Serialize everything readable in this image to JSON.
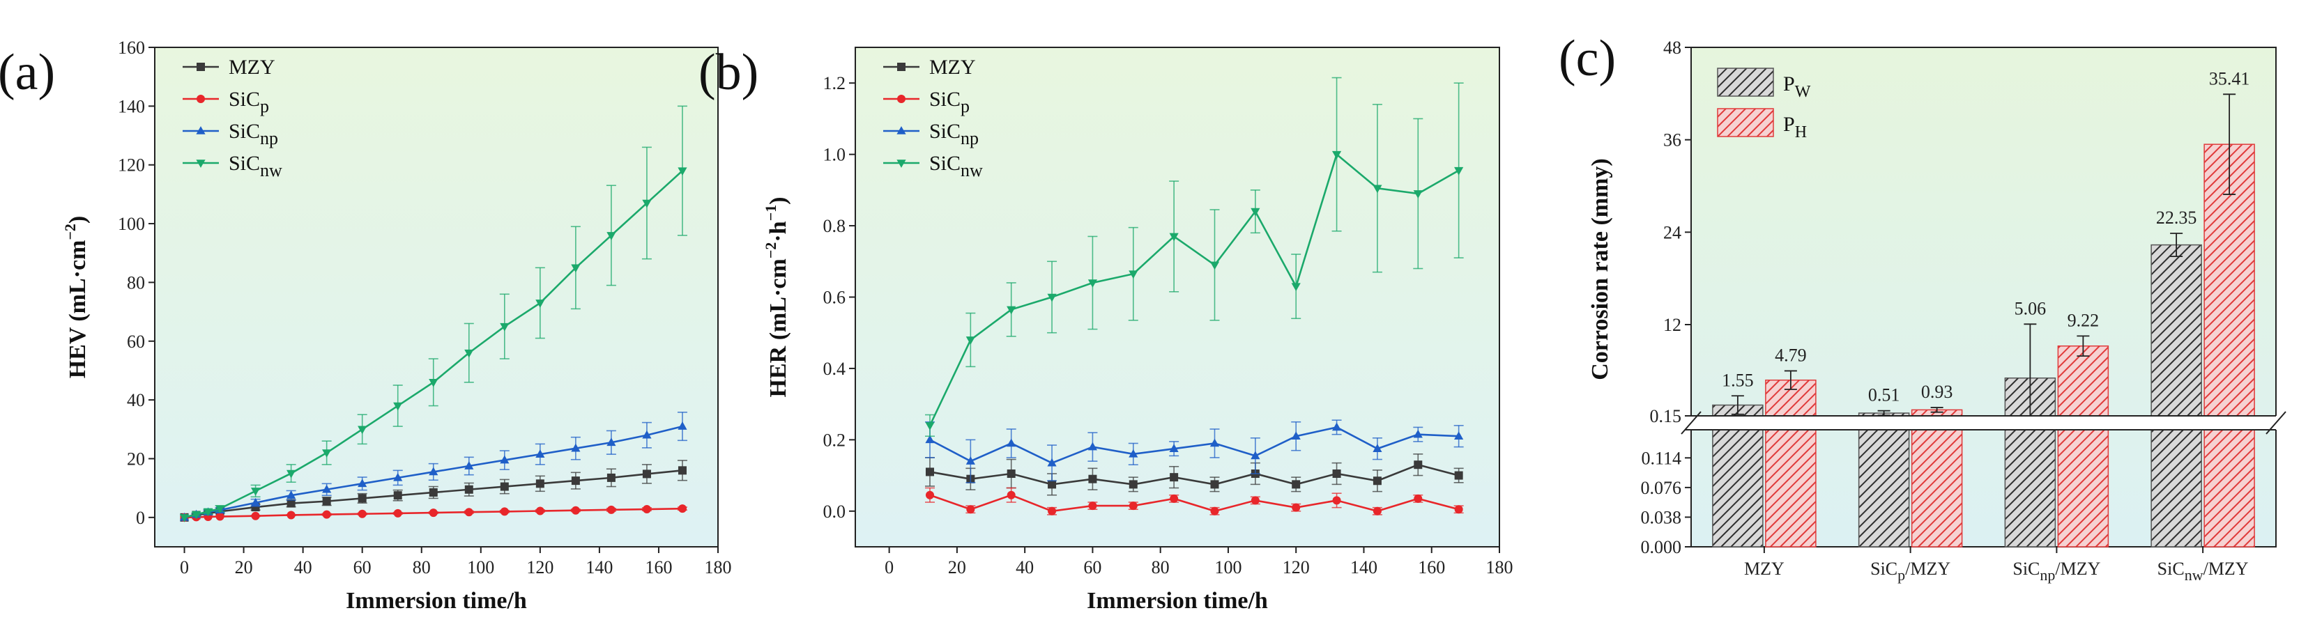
{
  "chart_data": [
    {
      "type": "line",
      "panel_label": "(a)",
      "xlabel": "Immersion time/h",
      "ylabel": "HEV (mL·cm⁻²)",
      "ylabel_parts": {
        "main": "HEV (mL·cm",
        "sup": "−2",
        "close": ")"
      },
      "xlim": [
        -10,
        180
      ],
      "ylim": [
        -10,
        160
      ],
      "xticks": [
        0,
        20,
        40,
        60,
        80,
        100,
        120,
        140,
        160,
        180
      ],
      "yticks": [
        0,
        20,
        40,
        60,
        80,
        100,
        120,
        140,
        160
      ],
      "gradient": [
        "#e8f6df",
        "#def2f4"
      ],
      "series": [
        {
          "name": "MZY",
          "name_main": "MZY",
          "name_sub": "",
          "color": "#3a3a3a",
          "marker": "square",
          "x": [
            0,
            4,
            8,
            12,
            24,
            36,
            48,
            60,
            72,
            84,
            96,
            108,
            120,
            132,
            144,
            156,
            168
          ],
          "y": [
            0,
            0.8,
            1.4,
            2,
            3.5,
            4.8,
            5.5,
            6.5,
            7.5,
            8.5,
            9.5,
            10.5,
            11.5,
            12.5,
            13.5,
            14.8,
            16
          ],
          "err": [
            0,
            0.3,
            0.5,
            0.6,
            1,
            1.2,
            1.4,
            1.6,
            1.8,
            2,
            2.2,
            2.4,
            2.6,
            2.8,
            3,
            3.2,
            3.4
          ]
        },
        {
          "name": "SiCp",
          "name_main": "SiC",
          "name_sub": "p",
          "color": "#e8262a",
          "marker": "circle",
          "x": [
            0,
            4,
            8,
            12,
            24,
            36,
            48,
            60,
            72,
            84,
            96,
            108,
            120,
            132,
            144,
            156,
            168
          ],
          "y": [
            0,
            0.1,
            0.2,
            0.3,
            0.5,
            0.8,
            1,
            1.2,
            1.4,
            1.6,
            1.8,
            2,
            2.2,
            2.4,
            2.6,
            2.8,
            3
          ],
          "err": [
            0,
            0.1,
            0.1,
            0.1,
            0.2,
            0.2,
            0.3,
            0.3,
            0.3,
            0.3,
            0.4,
            0.4,
            0.4,
            0.4,
            0.5,
            0.5,
            0.5
          ]
        },
        {
          "name": "SiCnp",
          "name_main": "SiC",
          "name_sub": "np",
          "color": "#1f5fc8",
          "marker": "triangle-up",
          "x": [
            0,
            4,
            8,
            12,
            24,
            36,
            48,
            60,
            72,
            84,
            96,
            108,
            120,
            132,
            144,
            156,
            168
          ],
          "y": [
            0,
            1,
            1.8,
            2.5,
            5,
            7.5,
            9.5,
            11.5,
            13.5,
            15.5,
            17.5,
            19.5,
            21.5,
            23.5,
            25.5,
            28,
            31
          ],
          "err": [
            0,
            0.4,
            0.6,
            0.8,
            1.2,
            1.6,
            2,
            2.2,
            2.5,
            2.8,
            3,
            3.2,
            3.5,
            3.8,
            4,
            4.3,
            4.8
          ]
        },
        {
          "name": "SiCnw",
          "name_main": "SiC",
          "name_sub": "nw",
          "color": "#1ba96b",
          "marker": "triangle-down",
          "x": [
            0,
            4,
            8,
            12,
            24,
            36,
            48,
            60,
            72,
            84,
            96,
            108,
            120,
            132,
            144,
            156,
            168
          ],
          "y": [
            0,
            1,
            2,
            3,
            9,
            15,
            22,
            30,
            38,
            46,
            56,
            65,
            73,
            85,
            96,
            107,
            118
          ],
          "err": [
            0,
            0.5,
            0.8,
            1,
            2,
            3,
            4,
            5,
            7,
            8,
            10,
            11,
            12,
            14,
            17,
            19,
            22
          ]
        }
      ]
    },
    {
      "type": "line",
      "panel_label": "(b)",
      "xlabel": "Immersion time/h",
      "ylabel": "HER (mL·cm⁻²·h⁻¹)",
      "ylabel_parts": {
        "main": "HER (mL·cm",
        "sup": "−2",
        "mid": "·h",
        "sup2": "−1",
        "close": ")"
      },
      "xlim": [
        -10,
        180
      ],
      "ylim": [
        -0.1,
        1.3
      ],
      "xticks": [
        0,
        20,
        40,
        60,
        80,
        100,
        120,
        140,
        160,
        180
      ],
      "yticks": [
        0.0,
        0.2,
        0.4,
        0.6,
        0.8,
        1.0,
        1.2
      ],
      "ytick_labels": [
        "0.0",
        "0.2",
        "0.4",
        "0.6",
        "0.8",
        "1.0",
        "1.2"
      ],
      "gradient": [
        "#e8f6df",
        "#def2f4"
      ],
      "series": [
        {
          "name": "MZY",
          "name_main": "MZY",
          "name_sub": "",
          "color": "#3a3a3a",
          "marker": "square",
          "x": [
            12,
            24,
            36,
            48,
            60,
            72,
            84,
            96,
            108,
            120,
            132,
            144,
            156,
            168
          ],
          "y": [
            0.11,
            0.09,
            0.105,
            0.075,
            0.09,
            0.075,
            0.095,
            0.075,
            0.105,
            0.075,
            0.105,
            0.085,
            0.13,
            0.1
          ],
          "err": [
            0.04,
            0.03,
            0.04,
            0.03,
            0.03,
            0.02,
            0.03,
            0.02,
            0.03,
            0.02,
            0.03,
            0.03,
            0.03,
            0.02
          ]
        },
        {
          "name": "SiCp",
          "name_main": "SiC",
          "name_sub": "p",
          "color": "#e8262a",
          "marker": "circle",
          "x": [
            12,
            24,
            36,
            48,
            60,
            72,
            84,
            96,
            108,
            120,
            132,
            144,
            156,
            168
          ],
          "y": [
            0.045,
            0.005,
            0.045,
            0.0,
            0.015,
            0.015,
            0.035,
            0.0,
            0.03,
            0.01,
            0.03,
            0.0,
            0.035,
            0.005
          ],
          "err": [
            0.02,
            0.01,
            0.02,
            0.01,
            0.01,
            0.01,
            0.01,
            0.01,
            0.01,
            0.01,
            0.02,
            0.01,
            0.01,
            0.01
          ]
        },
        {
          "name": "SiCnp",
          "name_main": "SiC",
          "name_sub": "np",
          "color": "#1f5fc8",
          "marker": "triangle-up",
          "x": [
            12,
            24,
            36,
            48,
            60,
            72,
            84,
            96,
            108,
            120,
            132,
            144,
            156,
            168
          ],
          "y": [
            0.2,
            0.14,
            0.19,
            0.135,
            0.18,
            0.16,
            0.175,
            0.19,
            0.155,
            0.21,
            0.235,
            0.175,
            0.215,
            0.21
          ],
          "err": [
            0.05,
            0.06,
            0.04,
            0.05,
            0.04,
            0.03,
            0.02,
            0.04,
            0.05,
            0.04,
            0.02,
            0.03,
            0.02,
            0.03
          ]
        },
        {
          "name": "SiCnw",
          "name_main": "SiC",
          "name_sub": "nw",
          "color": "#1ba96b",
          "marker": "triangle-down",
          "x": [
            12,
            24,
            36,
            48,
            60,
            72,
            84,
            96,
            108,
            120,
            132,
            144,
            156,
            168
          ],
          "y": [
            0.24,
            0.48,
            0.565,
            0.6,
            0.64,
            0.665,
            0.77,
            0.69,
            0.84,
            0.63,
            1.0,
            0.905,
            0.89,
            0.955
          ],
          "err": [
            0.03,
            0.075,
            0.075,
            0.1,
            0.13,
            0.13,
            0.155,
            0.155,
            0.06,
            0.09,
            0.215,
            0.235,
            0.21,
            0.245
          ]
        }
      ]
    },
    {
      "type": "bar",
      "panel_label": "(c)",
      "ylabel": "Corrosion rate (mmy)",
      "categories": [
        "MZY",
        "SiCp/MZY",
        "SiCnp/MZY",
        "SiCnw/MZY"
      ],
      "category_parts": [
        {
          "main": "MZY",
          "sub": "",
          "rest": ""
        },
        {
          "main": "SiC",
          "sub": "p",
          "rest": "/MZY"
        },
        {
          "main": "SiC",
          "sub": "np",
          "rest": "/MZY"
        },
        {
          "main": "SiC",
          "sub": "nw",
          "rest": "/MZY"
        }
      ],
      "axis_break": true,
      "upper_yticks": [
        0.15,
        12,
        24,
        36,
        48
      ],
      "upper_ytick_labels": [
        "0.15",
        "12",
        "24",
        "36",
        "48"
      ],
      "lower_yticks": [
        0.0,
        0.038,
        0.076,
        0.114,
        0.15
      ],
      "lower_ytick_labels": [
        "0.000",
        "0.038",
        "0.076",
        "0.114",
        ""
      ],
      "gradient": [
        "#e6f5dd",
        "#dcf1f3"
      ],
      "series": [
        {
          "name": "PW",
          "name_main": "P",
          "name_sub": "W",
          "color": "#555555",
          "hatch": "#2f2f2f",
          "fill": "#d9d9d9",
          "values": [
            1.55,
            0.51,
            5.06,
            22.35
          ],
          "labels": [
            "1.55",
            "0.51",
            "5.06",
            "22.35"
          ],
          "err": [
            1.2,
            0.3,
            7.0,
            1.5
          ]
        },
        {
          "name": "PH",
          "name_main": "P",
          "name_sub": "H",
          "color": "#e03a3a",
          "hatch": "#e03a3a",
          "fill": "#f6d2d2",
          "values": [
            4.79,
            0.93,
            9.22,
            35.41
          ],
          "labels": [
            "4.79",
            "0.93",
            "9.22",
            "35.41"
          ],
          "err": [
            1.2,
            0.3,
            1.3,
            6.5
          ]
        }
      ]
    }
  ]
}
